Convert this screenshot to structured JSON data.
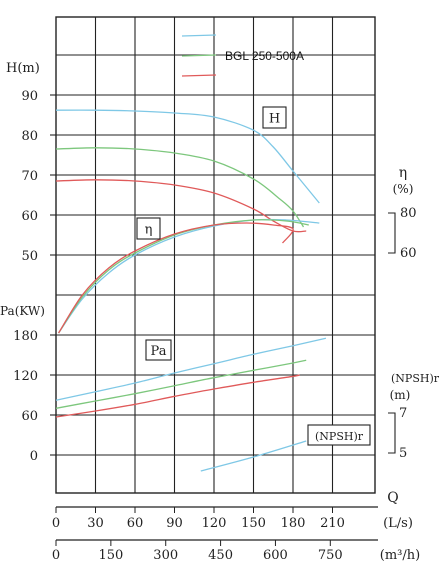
{
  "chart_data": {
    "type": "line",
    "x": [
      0,
      30,
      60,
      90,
      120,
      150,
      180,
      210
    ],
    "legend_entries": [
      {
        "name": "",
        "color": "#7fc8e6"
      },
      {
        "name": "BGL 250-500A",
        "color": "#7dc77d"
      },
      {
        "name": "",
        "color": "#e05a5a"
      }
    ],
    "axes": {
      "head": {
        "label": "H(m)",
        "ticks": [
          "90",
          "80",
          "70",
          "60",
          "50"
        ]
      },
      "efficiency": {
        "label": "η",
        "unit": "(%)",
        "ticks": [
          "80",
          "60"
        ]
      },
      "power": {
        "label": "Pa(KW)",
        "ticks": [
          "180",
          "120",
          "60",
          "0"
        ]
      },
      "npsh": {
        "label": "(NPSH)r",
        "unit": "(m)",
        "ticks": [
          "7",
          "5"
        ]
      },
      "flow_ls": {
        "label": "Q",
        "unit": "(L/s)",
        "ticks": [
          "0",
          "30",
          "60",
          "90",
          "120",
          "150",
          "180",
          "210"
        ]
      },
      "flow_m3h": {
        "unit": "(m³/h)",
        "ticks": [
          "0",
          "150",
          "300",
          "450",
          "600",
          "750"
        ]
      }
    },
    "curve_tags": [
      "H",
      "η",
      "Pa",
      "(NPSH)r"
    ],
    "series": {
      "head": [
        {
          "color": "#7fc8e6",
          "points": [
            [
              0,
              86.2
            ],
            [
              30,
              86.2
            ],
            [
              60,
              86
            ],
            [
              90,
              85.5
            ],
            [
              120,
              84.5
            ],
            [
              150,
              81.2
            ],
            [
              165,
              77
            ],
            [
              180,
              71
            ],
            [
              200,
              63
            ]
          ]
        },
        {
          "color": "#7dc77d",
          "points": [
            [
              0,
              76.5
            ],
            [
              30,
              76.8
            ],
            [
              60,
              76.5
            ],
            [
              90,
              75.5
            ],
            [
              120,
              73.5
            ],
            [
              150,
              69
            ],
            [
              170,
              64
            ],
            [
              180,
              61
            ],
            [
              188,
              57
            ]
          ]
        },
        {
          "color": "#e05a5a",
          "points": [
            [
              0,
              68.5
            ],
            [
              30,
              68.8
            ],
            [
              60,
              68.5
            ],
            [
              90,
              67.5
            ],
            [
              120,
              65.5
            ],
            [
              150,
              61.5
            ],
            [
              165,
              58.5
            ],
            [
              180,
              56
            ],
            [
              190,
              56
            ]
          ]
        }
      ],
      "efficiency": [
        {
          "color": "#7fc8e6",
          "points": [
            [
              2,
              20
            ],
            [
              20,
              37
            ],
            [
              40,
              50
            ],
            [
              60,
              59
            ],
            [
              90,
              68
            ],
            [
              120,
              73.5
            ],
            [
              150,
              76.5
            ],
            [
              175,
              76.5
            ],
            [
              200,
              75
            ]
          ]
        },
        {
          "color": "#7dc77d",
          "points": [
            [
              2,
              20
            ],
            [
              20,
              38
            ],
            [
              40,
              51.5
            ],
            [
              60,
              60
            ],
            [
              90,
              69
            ],
            [
              120,
              74
            ],
            [
              150,
              76.5
            ],
            [
              175,
              76
            ],
            [
              192,
              74
            ]
          ]
        },
        {
          "color": "#e05a5a",
          "points": [
            [
              2,
              20
            ],
            [
              20,
              39
            ],
            [
              40,
              52.5
            ],
            [
              60,
              61
            ],
            [
              90,
              69.5
            ],
            [
              120,
              74
            ],
            [
              145,
              75
            ],
            [
              165,
              74
            ],
            [
              180,
              72
            ],
            [
              172,
              65
            ]
          ]
        }
      ],
      "power": [
        {
          "color": "#7fc8e6",
          "points": [
            [
              0,
              82
            ],
            [
              30,
              95
            ],
            [
              60,
              108
            ],
            [
              90,
              123
            ],
            [
              120,
              137
            ],
            [
              150,
              151
            ],
            [
              180,
              164
            ],
            [
              205,
              175
            ]
          ]
        },
        {
          "color": "#7dc77d",
          "points": [
            [
              0,
              70
            ],
            [
              30,
              81
            ],
            [
              60,
              92
            ],
            [
              90,
              104
            ],
            [
              120,
              116
            ],
            [
              150,
              127
            ],
            [
              180,
              138
            ],
            [
              190,
              142
            ]
          ]
        },
        {
          "color": "#e05a5a",
          "points": [
            [
              0,
              57
            ],
            [
              30,
              66
            ],
            [
              60,
              76
            ],
            [
              90,
              88
            ],
            [
              120,
              99
            ],
            [
              150,
              109
            ],
            [
              180,
              118
            ],
            [
              185,
              120
            ]
          ]
        }
      ],
      "npsh": [
        {
          "color": "#7fc8e6",
          "points": [
            [
              110,
              4.1
            ],
            [
              150,
              4.8
            ],
            [
              190,
              5.6
            ]
          ]
        }
      ]
    },
    "xlim": [
      0,
      210
    ],
    "ylim_head": [
      50,
      90
    ]
  }
}
